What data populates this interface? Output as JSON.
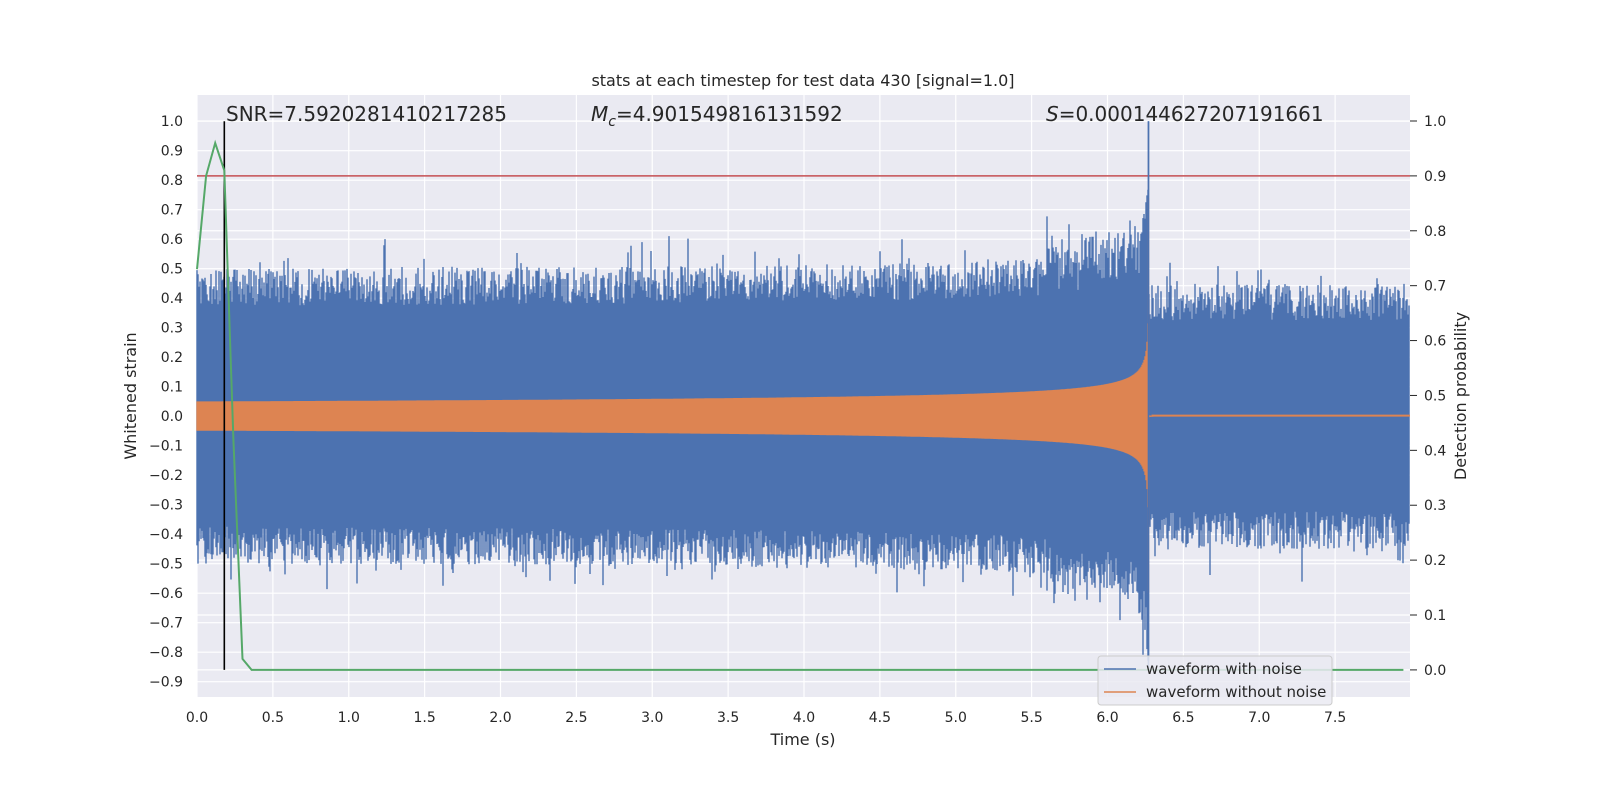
{
  "chart_data": {
    "type": "line",
    "title": "stats at each timestep for test data 430 [signal=1.0]",
    "xlabel": "Time (s)",
    "ylabel_left": "Whitened strain",
    "ylabel_right": "Detection probability",
    "xlim": [
      0.0,
      8.0
    ],
    "ylim_left": [
      -0.98,
      1.06
    ],
    "ylim_right": [
      -0.05,
      1.05
    ],
    "x_ticks": [
      "0.0",
      "0.5",
      "1.0",
      "1.5",
      "2.0",
      "2.5",
      "3.0",
      "3.5",
      "4.0",
      "4.5",
      "5.0",
      "5.5",
      "6.0",
      "6.5",
      "7.0",
      "7.5"
    ],
    "y_ticks_left": [
      "1.0",
      "0.9",
      "0.8",
      "0.7",
      "0.6",
      "0.5",
      "0.4",
      "0.3",
      "0.2",
      "0.1",
      "0.0",
      "−0.1",
      "−0.2",
      "−0.3",
      "−0.4",
      "−0.5",
      "−0.6",
      "−0.7",
      "−0.8",
      "−0.9"
    ],
    "y_ticks_right": [
      "1.0",
      "0.9",
      "0.8",
      "0.7",
      "0.6",
      "0.5",
      "0.4",
      "0.3",
      "0.2",
      "0.1",
      "0.0"
    ],
    "grid": true,
    "legend_position": "lower-right",
    "annotations": {
      "snr": "SNR=7.5920281410217285",
      "mc_symbol": "M",
      "mc_sub": "c",
      "mc_value": "=4.901549816131592",
      "s_symbol": "S",
      "s_value": "=0.000144627207191661"
    },
    "series": [
      {
        "name": "waveform with noise",
        "color": "#4c72b0",
        "axis": "left",
        "description_values": {
          "noise_envelope": 0.45,
          "merger_time": 6.27,
          "peak": 1.0
        }
      },
      {
        "name": "waveform without noise",
        "color": "#dd8452",
        "axis": "left",
        "description_values": {
          "start_amplitude": 0.05,
          "merger_time": 6.27,
          "peak": 0.74
        }
      },
      {
        "axis": "right",
        "color": "#55a868",
        "x": [
          0.0,
          0.06,
          0.12,
          0.18,
          0.24,
          0.3,
          0.36,
          0.42,
          7.95
        ],
        "y": [
          0.73,
          0.9,
          0.96,
          0.91,
          0.42,
          0.02,
          0.0,
          0.0,
          0.0
        ]
      }
    ],
    "threshold_line": {
      "axis": "right",
      "value": 0.9,
      "color": "#c44e52"
    },
    "vertical_markers": [
      {
        "x": 0.18,
        "color": "#000000"
      },
      {
        "x": 6.27,
        "color": "#4c72b0"
      }
    ]
  }
}
